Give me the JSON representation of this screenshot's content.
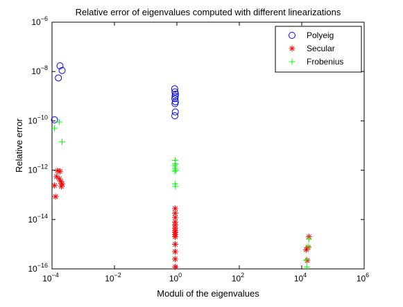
{
  "chart_data": {
    "type": "scatter",
    "title": "Relative error of eigenvalues computed with different linearizations",
    "xlabel": "Moduli of the eigenvalues",
    "ylabel": "Relative error",
    "xscale": "log",
    "yscale": "log",
    "xlim": [
      0.0001,
      1000000
    ],
    "ylim": [
      1e-16,
      1e-06
    ],
    "xticks": [
      {
        "value": 0.0001,
        "base": "10",
        "exp": "−4"
      },
      {
        "value": 0.01,
        "base": "10",
        "exp": "−2"
      },
      {
        "value": 1,
        "base": "10",
        "exp": "0"
      },
      {
        "value": 100,
        "base": "10",
        "exp": "2"
      },
      {
        "value": 10000,
        "base": "10",
        "exp": "4"
      },
      {
        "value": 1000000,
        "base": "10",
        "exp": "6"
      }
    ],
    "yticks": [
      {
        "value": 1e-16,
        "base": "10",
        "exp": "−16"
      },
      {
        "value": 1e-14,
        "base": "10",
        "exp": "−14"
      },
      {
        "value": 1e-12,
        "base": "10",
        "exp": "−12"
      },
      {
        "value": 1e-10,
        "base": "10",
        "exp": "−10"
      },
      {
        "value": 1e-08,
        "base": "10",
        "exp": "−8"
      },
      {
        "value": 1e-06,
        "base": "10",
        "exp": "−6"
      }
    ],
    "grid": false,
    "legend_position": "top-right",
    "series": [
      {
        "name": "Polyeig",
        "marker": "circle",
        "color": "#0000ff",
        "points": [
          [
            0.00012,
            1.1e-10
          ],
          [
            0.00016,
            5.5e-09
          ],
          [
            0.00018,
            1.7e-08
          ],
          [
            0.00021,
            1.1e-08
          ],
          [
            0.85,
            2e-09
          ],
          [
            0.87,
            1.5e-09
          ],
          [
            0.9,
            1.2e-09
          ],
          [
            0.88,
            1e-09
          ],
          [
            0.86,
            8e-10
          ],
          [
            0.9,
            6e-10
          ],
          [
            0.87,
            5e-10
          ],
          [
            0.89,
            2.3e-10
          ],
          [
            0.86,
            1.6e-10
          ]
        ]
      },
      {
        "name": "Secular",
        "marker": "star",
        "color": "#ff0000",
        "points": [
          [
            0.00012,
            2.4e-13
          ],
          [
            0.00013,
            8.5e-14
          ],
          [
            0.00014,
            5.5e-13
          ],
          [
            0.00015,
            9.5e-13
          ],
          [
            0.00017,
            4.5e-13
          ],
          [
            0.00018,
            9e-13
          ],
          [
            0.00019,
            3.5e-13
          ],
          [
            0.0002,
            2.2e-13
          ],
          [
            0.00021,
            2.8e-13
          ],
          [
            0.88,
            2.5e-15
          ],
          [
            0.88,
            1.8e-14
          ],
          [
            0.88,
            8e-15
          ],
          [
            0.88,
            4.5e-15
          ],
          [
            0.88,
            2e-15
          ],
          [
            0.88,
            1e-15
          ],
          [
            0.88,
            5e-16
          ],
          [
            0.88,
            2.5e-16
          ],
          [
            0.88,
            1.2e-16
          ],
          [
            0.88,
            6e-15
          ],
          [
            0.88,
            3e-15
          ],
          [
            0.88,
            1.2e-14
          ],
          [
            0.88,
            2.8e-14
          ],
          [
            0.88,
            3.5e-15
          ],
          [
            14000,
            6e-16
          ],
          [
            15000,
            2.2e-16
          ],
          [
            16000,
            7.5e-16
          ],
          [
            17000,
            2e-15
          ]
        ]
      },
      {
        "name": "Frobenius",
        "marker": "plus",
        "color": "#00ff00",
        "points": [
          [
            0.00012,
            5e-11
          ],
          [
            0.00017,
            9e-11
          ],
          [
            0.00021,
            1.4e-11
          ],
          [
            0.85,
            1.5e-12
          ],
          [
            0.9,
            1.8e-12
          ],
          [
            0.87,
            1.2e-12
          ],
          [
            0.92,
            1e-12
          ],
          [
            0.86,
            9e-13
          ],
          [
            0.88,
            2.5e-12
          ],
          [
            0.9,
            2.2e-13
          ],
          [
            0.87,
            2.8e-13
          ],
          [
            14000,
            2.3e-16
          ],
          [
            14500,
            1.2e-16
          ],
          [
            16000,
            8e-16
          ],
          [
            17000,
            1.6e-15
          ]
        ]
      }
    ]
  }
}
